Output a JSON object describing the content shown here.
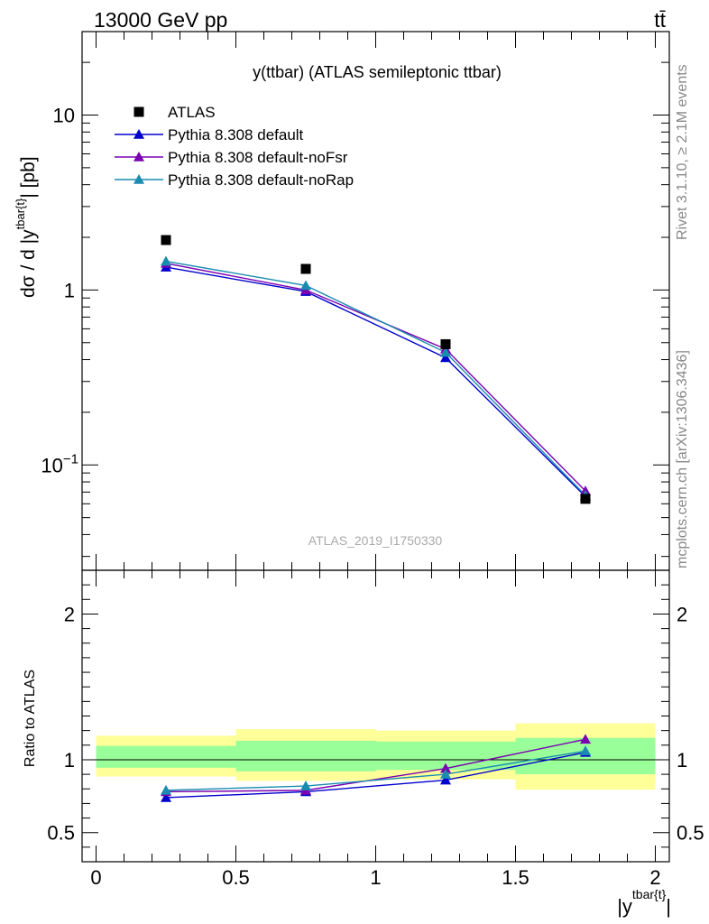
{
  "header": {
    "left": "13000 GeV pp",
    "right": "tt̄"
  },
  "side": {
    "rivet": "Rivet 3.1.10, ≥ 2.1M events",
    "mcplots": "mcplots.cern.ch [arXiv:1306.3436]"
  },
  "chart_data": [
    {
      "type": "scatter",
      "title": "y(ttbar) (ATLAS semileptonic ttbar)",
      "watermark": "ATLAS_2019_I1750330",
      "ylabel": {
        "main": "dσ / d |y",
        "sup": "tbar{t}",
        "end": "| [pb]"
      },
      "xlabel": {
        "main": "|y",
        "sup": "tbar{t}",
        "end": "|"
      },
      "yscale": "log",
      "xlim": [
        -0.05,
        2.05
      ],
      "ylim": [
        0.025,
        30
      ],
      "yticks": [
        {
          "value": 0.1,
          "base": "10",
          "exp": "−1"
        },
        {
          "value": 1,
          "base": "1",
          "exp": ""
        },
        {
          "value": 10,
          "base": "10",
          "exp": ""
        }
      ],
      "legend_position": "top-left",
      "data": {
        "name": "ATLAS",
        "x": [
          0.25,
          0.75,
          1.25,
          1.75
        ],
        "y": [
          1.93,
          1.32,
          0.49,
          0.064
        ]
      },
      "series": [
        {
          "name": "Pythia 8.308 default",
          "color": "#0000cc",
          "x": [
            0.25,
            0.75,
            1.25,
            1.75
          ],
          "y": [
            1.35,
            0.98,
            0.41,
            0.066
          ]
        },
        {
          "name": "Pythia 8.308 default-noFsr",
          "color": "#7a00b0",
          "x": [
            0.25,
            0.75,
            1.25,
            1.75
          ],
          "y": [
            1.42,
            1.0,
            0.46,
            0.071
          ]
        },
        {
          "name": "Pythia 8.308 default-noRap",
          "color": "#1a8cb0",
          "x": [
            0.25,
            0.75,
            1.25,
            1.75
          ],
          "y": [
            1.46,
            1.06,
            0.44,
            0.067
          ]
        }
      ]
    },
    {
      "type": "line",
      "ylabel": "Ratio to ATLAS",
      "xlim": [
        -0.05,
        2.05
      ],
      "ylim": [
        0.3,
        2.3
      ],
      "xticks": [
        "0",
        "0.5",
        "1",
        "1.5",
        "2"
      ],
      "yticks": [
        "0.5",
        "1",
        "2"
      ],
      "bands": [
        {
          "x0": 0.0,
          "x1": 0.5,
          "yellow": [
            0.885,
            1.165
          ],
          "green": [
            0.945,
            1.095
          ]
        },
        {
          "x0": 0.5,
          "x1": 1.0,
          "yellow": [
            0.855,
            1.21
          ],
          "green": [
            0.92,
            1.13
          ]
        },
        {
          "x0": 1.0,
          "x1": 1.5,
          "yellow": [
            0.865,
            1.2
          ],
          "green": [
            0.93,
            1.125
          ]
        },
        {
          "x0": 1.5,
          "x1": 2.0,
          "yellow": [
            0.795,
            1.25
          ],
          "green": [
            0.9,
            1.15
          ]
        }
      ],
      "series": [
        {
          "name": "Pythia 8.308 default",
          "color": "#0000cc",
          "x": [
            0.25,
            0.75,
            1.25,
            1.75
          ],
          "y": [
            0.74,
            0.78,
            0.86,
            1.05
          ]
        },
        {
          "name": "Pythia 8.308 default-noFsr",
          "color": "#7a00b0",
          "x": [
            0.25,
            0.75,
            1.25,
            1.75
          ],
          "y": [
            0.78,
            0.79,
            0.94,
            1.14
          ]
        },
        {
          "name": "Pythia 8.308 default-noRap",
          "color": "#1a8cb0",
          "x": [
            0.25,
            0.75,
            1.25,
            1.75
          ],
          "y": [
            0.79,
            0.82,
            0.9,
            1.06
          ]
        }
      ]
    }
  ]
}
